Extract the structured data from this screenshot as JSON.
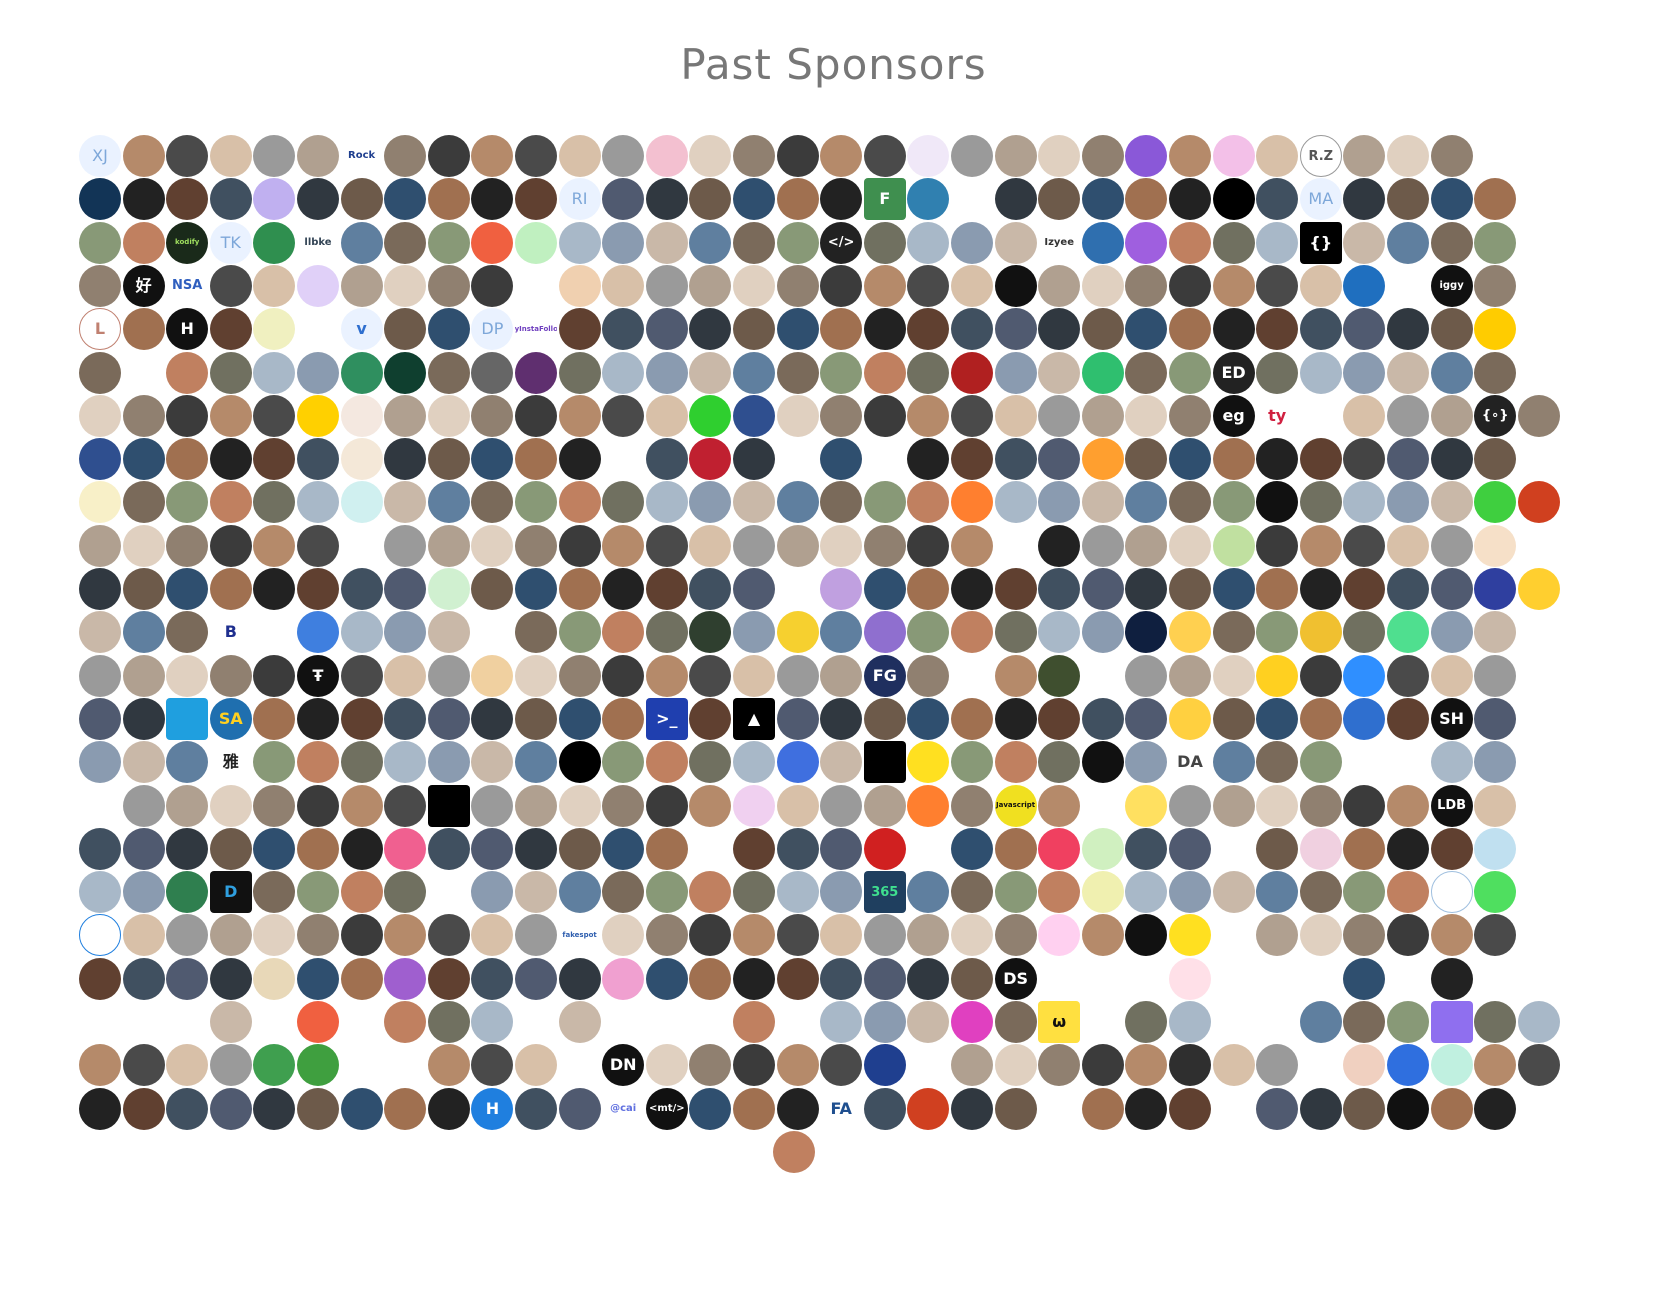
{
  "title": "Past Sponsors",
  "palette": [
    "#3b3b3b",
    "#6d5a4a",
    "#8a9bb0",
    "#b58a6a",
    "#2f4f6f",
    "#c9b8a8",
    "#4a4a4a",
    "#a07050",
    "#5f7f9f",
    "#d8c0a8",
    "#222222",
    "#7a6a5a",
    "#9a9a9a",
    "#604030",
    "#889977",
    "#b0a090",
    "#405060",
    "#c08060",
    "#e0d0c0",
    "#505a70",
    "#707060",
    "#908070",
    "#303840",
    "#a8b8c8"
  ],
  "sponsors": [
    [
      {
        "label": "XJ",
        "style": "light"
      },
      {},
      {},
      {},
      {},
      {},
      {
        "label": "Rock",
        "bg": "#ffffff",
        "fg": "#1f3f8f"
      },
      {},
      {},
      {},
      {},
      {},
      {},
      {
        "bg": "#f3c0d0"
      },
      {},
      {},
      {},
      {},
      {},
      {
        "bg": "#f0e8f8"
      },
      {},
      {},
      {},
      {},
      {
        "bg": "#8a58d8"
      },
      {},
      {
        "bg": "#f3c0e8"
      },
      {},
      {
        "label": "R.Z",
        "bg": "#ffffff",
        "fg": "#555555",
        "border": "#999999"
      },
      {},
      {},
      {}
    ],
    [
      {
        "bg": "#123456"
      },
      {},
      {},
      {},
      {
        "bg": "#c0b0f0"
      },
      {},
      {},
      {},
      {},
      {},
      {},
      {
        "label": "RI",
        "style": "light"
      },
      {},
      {},
      {},
      {},
      {},
      {},
      {
        "label": "F",
        "bg": "#3f8f4f",
        "fg": "#ffffff",
        "shape": "square"
      },
      {
        "bg": "#3080b0"
      },
      {
        "bg": "#ffffff",
        "fg": "#222222"
      },
      {},
      {},
      {},
      {},
      {},
      {
        "bg": "#000000"
      },
      {},
      {
        "label": "MA",
        "style": "light"
      },
      {},
      {},
      {},
      {}
    ],
    [
      {},
      {},
      {
        "label": "kodify",
        "bg": "#1a2a1a",
        "fg": "#9fdf5f"
      },
      {
        "label": "TK",
        "style": "light"
      },
      {
        "bg": "#2f8f4f"
      },
      {
        "label": "llbke",
        "bg": "#ffffff",
        "fg": "#334455"
      },
      {},
      {},
      {},
      {
        "bg": "#f06040"
      },
      {
        "bg": "#c0f0c0"
      },
      {},
      {},
      {},
      {},
      {},
      {},
      {
        "label": "</>",
        "bg": "#222222",
        "fg": "#ffffff"
      },
      {},
      {},
      {},
      {},
      {
        "label": "Izyee",
        "bg": "#ffffff",
        "fg": "#333333"
      },
      {
        "bg": "#2f6faf"
      },
      {
        "bg": "#9f5fdf"
      },
      {},
      {},
      {},
      {
        "label": "{}",
        "bg": "#000000",
        "fg": "#ffffff",
        "shape": "square"
      },
      {},
      {},
      {},
      {}
    ],
    [
      {},
      {
        "label": "好",
        "bg": "#111111",
        "fg": "#ffffff"
      },
      {
        "label": "NSA",
        "bg": "#ffffff",
        "fg": "#2f5fbf"
      },
      {},
      {},
      {
        "bg": "#e0d0f8"
      },
      {},
      {},
      {},
      {},
      {
        "bg": "#ffffff"
      },
      {
        "bg": "#f0d0b0"
      },
      {},
      {},
      {},
      {},
      {},
      {},
      {},
      {},
      {},
      {
        "bg": "#111111"
      },
      {},
      {},
      {},
      {},
      {},
      {},
      {},
      {
        "bg": "#1f6fbf"
      },
      {
        "bg": "#ffffff"
      },
      {
        "label": "iggy",
        "bg": "#111111",
        "fg": "#ffffff"
      },
      {},
      {
        "bg": "#ffffff"
      }
    ],
    [
      {
        "label": "L",
        "bg": "#ffffff",
        "fg": "#c08070",
        "border": "#c08070"
      },
      {},
      {
        "label": "H",
        "bg": "#111111",
        "fg": "#ffffff"
      },
      {},
      {
        "bg": "#f0f0c0"
      },
      {
        "bg": "#ffffff",
        "fg": "#3060c0"
      },
      {
        "label": "v",
        "bg": "#eaf2ff",
        "fg": "#2f6fcf"
      },
      {},
      {},
      {
        "label": "DP",
        "style": "light"
      },
      {
        "label": "MyInstaFollow",
        "bg": "#ffffff",
        "fg": "#6f3fbf"
      },
      {},
      {},
      {},
      {},
      {},
      {},
      {},
      {},
      {},
      {},
      {},
      {},
      {},
      {},
      {},
      {},
      {},
      {},
      {},
      {},
      {},
      {
        "bg": "#ffcc00"
      }
    ],
    [
      {},
      {
        "bg": "#ffffff"
      },
      {},
      {},
      {},
      {},
      {
        "bg": "#2f8f5f"
      },
      {
        "bg": "#0f3f2f"
      },
      {},
      {
        "bg": "#666666"
      },
      {
        "bg": "#5f2f6f"
      },
      {},
      {},
      {},
      {},
      {},
      {},
      {},
      {},
      {},
      {
        "bg": "#b02020"
      },
      {},
      {},
      {
        "bg": "#2fbf6f"
      },
      {},
      {},
      {
        "label": "ED",
        "bg": "#222222",
        "fg": "#ffffff"
      },
      {},
      {},
      {},
      {},
      {},
      {}
    ],
    [
      {},
      {},
      {},
      {},
      {},
      {
        "bg": "#ffd000"
      },
      {
        "bg": "#f4e8e0"
      },
      {},
      {},
      {},
      {},
      {},
      {},
      {},
      {
        "bg": "#2fcf2f"
      },
      {
        "bg": "#2f4f8f"
      },
      {},
      {},
      {},
      {},
      {},
      {},
      {},
      {},
      {},
      {},
      {
        "label": "eg",
        "bg": "#111111",
        "fg": "#ffffff"
      },
      {
        "label": "ty",
        "bg": "#ffffff",
        "fg": "#d02040"
      },
      {
        "bg": "#ffffff",
        "fg": "#3f8fdf"
      },
      {},
      {},
      {},
      {
        "label": "{∘}",
        "bg": "#222222",
        "fg": "#ffffff"
      },
      {}
    ],
    [
      {
        "bg": "#2f4f8f"
      },
      {},
      {},
      {},
      {},
      {},
      {
        "bg": "#f4e8d8"
      },
      {},
      {},
      {},
      {},
      {},
      {
        "bg": "#ffffff"
      },
      {},
      {
        "bg": "#c02030"
      },
      {},
      {
        "bg": "#ffffff"
      },
      {},
      {
        "bg": "#ffffff",
        "fg": "#3fbf8f"
      },
      {},
      {},
      {},
      {},
      {
        "bg": "#ff9f2f"
      },
      {},
      {},
      {},
      {},
      {},
      {
        "bg": "#444444"
      },
      {},
      {},
      {}
    ],
    [
      {
        "bg": "#f8f0c8"
      },
      {},
      {},
      {},
      {},
      {},
      {
        "bg": "#d0f0f0"
      },
      {},
      {},
      {},
      {},
      {},
      {},
      {},
      {},
      {},
      {},
      {},
      {},
      {},
      {
        "bg": "#ff7f2f"
      },
      {},
      {},
      {},
      {},
      {},
      {},
      {
        "bg": "#111111"
      },
      {},
      {},
      {},
      {},
      {
        "bg": "#3fcf3f"
      },
      {
        "bg": "#d0401f"
      }
    ],
    [
      {},
      {},
      {},
      {},
      {},
      {},
      {
        "bg": "#ffffff"
      },
      {},
      {},
      {},
      {},
      {},
      {},
      {},
      {},
      {},
      {},
      {},
      {},
      {},
      {},
      {
        "bg": "#ffffff"
      },
      {
        "bg": "#222222"
      },
      {},
      {},
      {},
      {
        "bg": "#c0e0a0"
      },
      {},
      {},
      {},
      {},
      {},
      {
        "bg": "#f6e0c8"
      }
    ],
    [
      {},
      {},
      {},
      {},
      {},
      {},
      {},
      {},
      {
        "bg": "#d0f0d0"
      },
      {},
      {},
      {},
      {},
      {},
      {},
      {},
      {
        "bg": "#ffffff"
      },
      {
        "bg": "#c0a0e0"
      },
      {},
      {},
      {},
      {},
      {},
      {},
      {},
      {},
      {},
      {},
      {},
      {},
      {},
      {},
      {
        "bg": "#2f3f9f"
      },
      {
        "bg": "#ffcf2f"
      }
    ],
    [
      {},
      {},
      {},
      {
        "label": "B",
        "bg": "#ffffff",
        "fg": "#1f2f8f"
      },
      {
        "bg": "#ffffff",
        "fg": "#2f9f4f"
      },
      {
        "bg": "#3f7fdf"
      },
      {},
      {},
      {},
      {
        "bg": "#ffffff",
        "fg": "#111111"
      },
      {},
      {},
      {},
      {},
      {
        "bg": "#2f3f2f"
      },
      {},
      {
        "bg": "#f6d02f"
      },
      {},
      {
        "bg": "#8f6fcf"
      },
      {},
      {},
      {},
      {},
      {},
      {
        "bg": "#0f1f3f"
      },
      {
        "bg": "#ffd050"
      },
      {},
      {},
      {
        "bg": "#f0c030"
      },
      {},
      {
        "bg": "#4fdf8f"
      },
      {},
      {}
    ],
    [
      {},
      {},
      {},
      {},
      {},
      {
        "label": "Ŧ",
        "bg": "#111111",
        "fg": "#ffffff"
      },
      {},
      {},
      {},
      {
        "bg": "#f0d0a0"
      },
      {},
      {},
      {},
      {},
      {},
      {},
      {},
      {},
      {
        "label": "FG",
        "bg": "#1f2f5f",
        "fg": "#ffffff"
      },
      {},
      {
        "bg": "#ffffff",
        "fg": "#3f6fdf"
      },
      {},
      {
        "bg": "#3f4f2f"
      },
      {
        "bg": "#ffffff",
        "fg": "#111111"
      },
      {},
      {},
      {},
      {
        "bg": "#ffd020"
      },
      {},
      {
        "bg": "#2f8fff"
      },
      {},
      {},
      {}
    ],
    [
      {},
      {},
      {
        "bg": "#1f9fdf",
        "shape": "square"
      },
      {
        "label": "SA",
        "bg": "#1f6faf",
        "fg": "#ffd020"
      },
      {},
      {},
      {},
      {},
      {},
      {},
      {},
      {},
      {},
      {
        "label": ">_",
        "bg": "#1f3faf",
        "fg": "#ffffff",
        "shape": "square"
      },
      {},
      {
        "label": "▲",
        "bg": "#000000",
        "fg": "#ffffff",
        "shape": "square"
      },
      {},
      {},
      {},
      {},
      {},
      {},
      {},
      {},
      {},
      {
        "bg": "#ffd040"
      },
      {},
      {},
      {},
      {
        "bg": "#2f6fcf"
      },
      {},
      {
        "label": "SH",
        "bg": "#111111",
        "fg": "#ffffff"
      },
      {}
    ],
    [
      {},
      {},
      {},
      {
        "label": "雅",
        "bg": "#ffffff",
        "fg": "#222222"
      },
      {},
      {},
      {},
      {},
      {},
      {},
      {},
      {
        "bg": "#000000"
      },
      {},
      {},
      {},
      {},
      {
        "bg": "#3f6fdf"
      },
      {},
      {
        "bg": "#000000",
        "shape": "square"
      },
      {
        "bg": "#ffe020"
      },
      {},
      {},
      {},
      {
        "bg": "#111111"
      },
      {},
      {
        "label": "DA",
        "bg": "#ffffff",
        "fg": "#444444"
      },
      {},
      {},
      {},
      {
        "bg": "#ffffff"
      },
      {
        "bg": "#ffffff",
        "fg": "#7f9fdf"
      },
      {},
      {}
    ],
    [
      {
        "bg": "#ffffff",
        "fg": "#2f5f9f"
      },
      {},
      {},
      {},
      {},
      {},
      {},
      {},
      {
        "bg": "#000000",
        "shape": "square"
      },
      {},
      {},
      {},
      {},
      {},
      {},
      {
        "bg": "#f0d0f0"
      },
      {},
      {},
      {},
      {
        "bg": "#ff7f2f"
      },
      {},
      {
        "label": "Javascript",
        "bg": "#f0e020",
        "fg": "#111111"
      },
      {},
      {
        "bg": "#ffffff"
      },
      {
        "bg": "#ffe060"
      },
      {},
      {},
      {},
      {},
      {},
      {},
      {
        "label": "LDB",
        "bg": "#111111",
        "fg": "#ffffff"
      },
      {}
    ],
    [
      {},
      {},
      {},
      {},
      {},
      {},
      {},
      {
        "bg": "#f06090"
      },
      {},
      {},
      {},
      {},
      {},
      {},
      {
        "bg": "#ffffff"
      },
      {},
      {},
      {},
      {
        "bg": "#d02020"
      },
      {
        "bg": "#ffffff"
      },
      {},
      {},
      {
        "bg": "#f04060"
      },
      {
        "bg": "#d0f0c0"
      },
      {},
      {},
      {
        "bg": "#ffffff"
      },
      {},
      {
        "bg": "#f0d0e0"
      },
      {},
      {},
      {},
      {
        "bg": "#c0e0f0"
      }
    ],
    [
      {},
      {},
      {
        "bg": "#2f7f4f"
      },
      {
        "label": "D",
        "bg": "#111111",
        "fg": "#2f9fdf",
        "shape": "square"
      },
      {},
      {},
      {},
      {},
      {
        "bg": "#ffffff",
        "fg": "#e04040"
      },
      {},
      {},
      {},
      {},
      {},
      {},
      {},
      {},
      {},
      {
        "label": "365",
        "bg": "#1f3f5f",
        "fg": "#3fdf8f",
        "shape": "square"
      },
      {},
      {},
      {},
      {},
      {
        "bg": "#f0f0b0"
      },
      {},
      {},
      {},
      {},
      {},
      {},
      {},
      {
        "bg": "#ffffff",
        "border": "#9fbfdf"
      },
      {
        "bg": "#4fdf5f"
      }
    ],
    [
      {
        "bg": "#ffffff",
        "fg": "#1f7fdf",
        "border": "#1f7fdf"
      },
      {},
      {},
      {},
      {},
      {},
      {},
      {},
      {},
      {},
      {},
      {
        "label": "fakespot",
        "bg": "#ffffff",
        "fg": "#2f5faf"
      },
      {},
      {},
      {},
      {},
      {},
      {},
      {},
      {},
      {},
      {},
      {
        "bg": "#ffd0f0"
      },
      {},
      {
        "bg": "#111111"
      },
      {
        "bg": "#ffe020"
      },
      {
        "bg": "#ffffff",
        "fg": "#9f4fdf"
      },
      {},
      {},
      {},
      {},
      {},
      {}
    ],
    [
      {},
      {},
      {},
      {},
      {
        "bg": "#e8d8b8"
      },
      {},
      {},
      {
        "bg": "#9f5fcf"
      },
      {},
      {},
      {},
      {},
      {
        "bg": "#f0a0d0"
      },
      {},
      {},
      {},
      {},
      {},
      {},
      {},
      {},
      {
        "label": "DS",
        "bg": "#111111",
        "fg": "#ffffff"
      },
      {
        "bg": "#ffffff",
        "fg": "#2f9fdf"
      },
      {
        "bg": "#ffffff"
      },
      {
        "bg": "#ffffff"
      },
      {
        "bg": "#ffe0e8"
      },
      {
        "bg": "#ffffff"
      },
      {
        "bg": "#ffffff"
      },
      {
        "bg": "#ffffff"
      },
      {},
      {
        "bg": "#ffffff"
      },
      {},
      {
        "bg": "#ffffff"
      }
    ],
    [
      {
        "bg": "#ffffff",
        "fg": "#111111"
      },
      {
        "bg": "#ffffff"
      },
      {
        "bg": "#ffffff"
      },
      {},
      {
        "bg": "#ffffff",
        "fg": "#9f6fdf"
      },
      {
        "bg": "#f06040"
      },
      {
        "bg": "#ffffff"
      },
      {},
      {},
      {},
      {
        "bg": "#ffffff"
      },
      {},
      {
        "bg": "#ffffff"
      },
      {
        "bg": "#ffffff"
      },
      {
        "bg": "#ffffff"
      },
      {},
      {
        "bg": "#ffffff"
      },
      {},
      {},
      {},
      {
        "bg": "#e040c0"
      },
      {},
      {
        "label": "ω",
        "bg": "#ffe040",
        "fg": "#111111",
        "shape": "square"
      },
      {
        "bg": "#ffffff"
      },
      {},
      {},
      {
        "bg": "#ffffff"
      },
      {
        "bg": "#ffffff"
      },
      {},
      {},
      {},
      {
        "bg": "#8f6fef",
        "shape": "square"
      },
      {},
      {}
    ],
    [
      {},
      {},
      {},
      {},
      {
        "bg": "#3f9f4f"
      },
      {
        "bg": "#3f9f3f"
      },
      {
        "bg": "#ffffff"
      },
      {
        "bg": "#ffffff"
      },
      {},
      {},
      {},
      {
        "bg": "#ffffff"
      },
      {
        "label": "DN",
        "bg": "#111111",
        "fg": "#ffffff"
      },
      {},
      {},
      {},
      {},
      {},
      {
        "bg": "#1f3f8f"
      },
      {
        "bg": "#ffffff"
      },
      {},
      {},
      {},
      {},
      {},
      {
        "bg": "#2f2f2f"
      },
      {},
      {},
      {
        "bg": "#ffffff",
        "fg": "#111111"
      },
      {
        "bg": "#f0d0c0"
      },
      {
        "bg": "#2f6fdf"
      },
      {
        "bg": "#c0f0e0"
      },
      {},
      {}
    ],
    [
      {},
      {},
      {},
      {},
      {},
      {},
      {},
      {},
      {},
      {
        "label": "H",
        "bg": "#1f7fdf",
        "fg": "#ffffff"
      },
      {},
      {},
      {
        "label": "@cai",
        "bg": "#ffffff",
        "fg": "#5f6fdf"
      },
      {
        "label": "<mt/>",
        "bg": "#111111",
        "fg": "#ffffff"
      },
      {},
      {},
      {},
      {
        "label": "FA",
        "bg": "#ffffff",
        "fg": "#1f4f8f"
      },
      {},
      {
        "bg": "#d04020"
      },
      {},
      {},
      {
        "bg": "#ffffff"
      },
      {},
      {},
      {},
      {
        "bg": "#ffffff"
      },
      {},
      {},
      {},
      {
        "bg": "#111111"
      },
      {},
      {}
    ],
    [
      {}
    ]
  ]
}
